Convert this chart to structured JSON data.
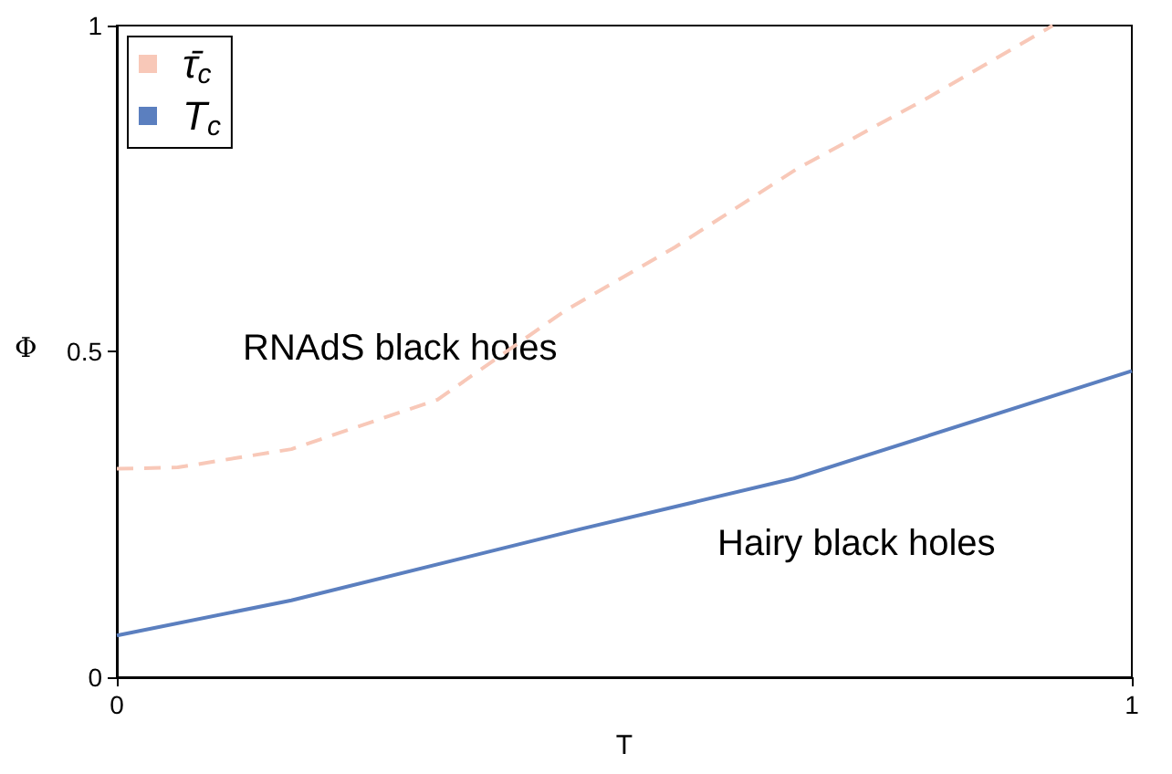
{
  "chart_data": {
    "type": "line",
    "xlabel": "T",
    "ylabel": "Φ",
    "series": [
      {
        "name": "τ̄$_{c}$",
        "color": "#f8c8b8",
        "line_style": "dashed",
        "x": [
          0,
          0.06,
          0.172,
          0.316,
          0.442,
          0.55,
          0.67,
          0.8,
          0.922
        ],
        "values": [
          0.32,
          0.322,
          0.35,
          0.426,
          0.563,
          0.66,
          0.78,
          0.89,
          1.0
        ]
      },
      {
        "name": "T$_{c}$",
        "color": "#5b7fbf",
        "line_style": "solid",
        "x": [
          0,
          0.172,
          0.456,
          0.667,
          1.0
        ],
        "values": [
          0.064,
          0.118,
          0.227,
          0.305,
          0.47
        ]
      }
    ],
    "xlim": [
      0,
      1
    ],
    "ylim": [
      0,
      1
    ],
    "xticks": [
      0,
      1
    ],
    "yticks": [
      0,
      0.5,
      1
    ],
    "grid": false,
    "legend": "top left",
    "marker": "none",
    "annotations": [
      "RNAdS black holes",
      "Hairy black holes"
    ]
  }
}
